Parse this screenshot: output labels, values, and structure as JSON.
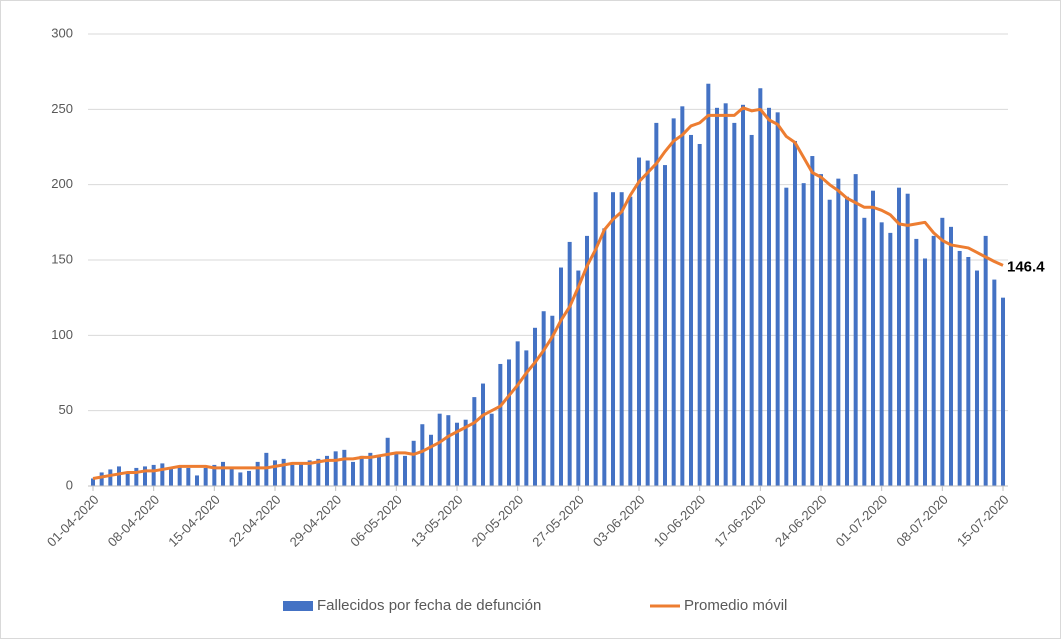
{
  "chart_data": {
    "type": "bar_line",
    "categories": [
      "01-04-2020",
      null,
      null,
      null,
      null,
      null,
      null,
      "08-04-2020",
      null,
      null,
      null,
      null,
      null,
      null,
      "15-04-2020",
      null,
      null,
      null,
      null,
      null,
      null,
      "22-04-2020",
      null,
      null,
      null,
      null,
      null,
      null,
      "29-04-2020",
      null,
      null,
      null,
      null,
      null,
      null,
      "06-05-2020",
      null,
      null,
      null,
      null,
      null,
      null,
      "13-05-2020",
      null,
      null,
      null,
      null,
      null,
      null,
      "20-05-2020",
      null,
      null,
      null,
      null,
      null,
      null,
      "27-05-2020",
      null,
      null,
      null,
      null,
      null,
      null,
      "03-06-2020",
      null,
      null,
      null,
      null,
      null,
      null,
      "10-06-2020",
      null,
      null,
      null,
      null,
      null,
      null,
      "17-06-2020",
      null,
      null,
      null,
      null,
      null,
      null,
      "24-06-2020",
      null,
      null,
      null,
      null,
      null,
      null,
      "01-07-2020",
      null,
      null,
      null,
      null,
      null,
      null,
      "08-07-2020",
      null,
      null,
      null,
      null,
      null,
      null,
      "15-07-2020"
    ],
    "series": [
      {
        "name": "Fallecidos por fecha de defunción",
        "type": "bar",
        "color": "#4472c4",
        "values": [
          5,
          9,
          11,
          13,
          9,
          12,
          13,
          14,
          15,
          12,
          13,
          12,
          7,
          12,
          14,
          16,
          12,
          9,
          10,
          16,
          22,
          17,
          18,
          14,
          15,
          17,
          18,
          20,
          23,
          24,
          16,
          20,
          22,
          20,
          32,
          22,
          20,
          30,
          41,
          34,
          48,
          47,
          42,
          44,
          59,
          68,
          48,
          81,
          84,
          96,
          90,
          105,
          116,
          113,
          145,
          162,
          143,
          166,
          195,
          171,
          195,
          195,
          192,
          218,
          216,
          241,
          213,
          244,
          252,
          233,
          227,
          267,
          251,
          254,
          241,
          253,
          233,
          264,
          251,
          248,
          198,
          229,
          201,
          219,
          207,
          190,
          204,
          192,
          207,
          178,
          196,
          175,
          168,
          198,
          194,
          164,
          151,
          166,
          178,
          172,
          156,
          152,
          143,
          166,
          137,
          125
        ]
      },
      {
        "name": "Promedio móvil",
        "type": "line",
        "color": "#ed7d31",
        "label_last": true,
        "values": [
          5,
          6,
          7,
          8,
          9,
          9,
          10,
          10,
          11,
          12,
          13,
          13,
          13,
          13,
          12,
          12,
          12,
          12,
          12,
          12,
          12,
          13,
          14,
          15,
          15,
          15,
          16,
          17,
          17,
          18,
          18,
          19,
          19,
          20,
          21,
          22,
          22,
          21,
          23,
          26,
          29,
          33,
          36,
          39,
          42,
          47,
          50,
          53,
          60,
          67,
          75,
          82,
          90,
          99,
          110,
          119,
          132,
          146,
          157,
          170,
          177,
          182,
          193,
          202,
          208,
          214,
          222,
          229,
          233,
          239,
          241,
          246,
          246,
          246,
          246,
          251,
          249,
          250,
          243,
          240,
          232,
          228,
          218,
          208,
          205,
          200,
          196,
          191,
          188,
          185,
          185,
          183,
          180,
          174,
          173,
          174,
          175,
          168,
          163,
          160,
          159,
          158,
          155,
          152,
          149,
          146.4
        ]
      }
    ],
    "ylim": [
      0,
      300
    ],
    "yticks": [
      0,
      50,
      100,
      150,
      200,
      250,
      300
    ],
    "grid": true,
    "legend": "bottom"
  }
}
